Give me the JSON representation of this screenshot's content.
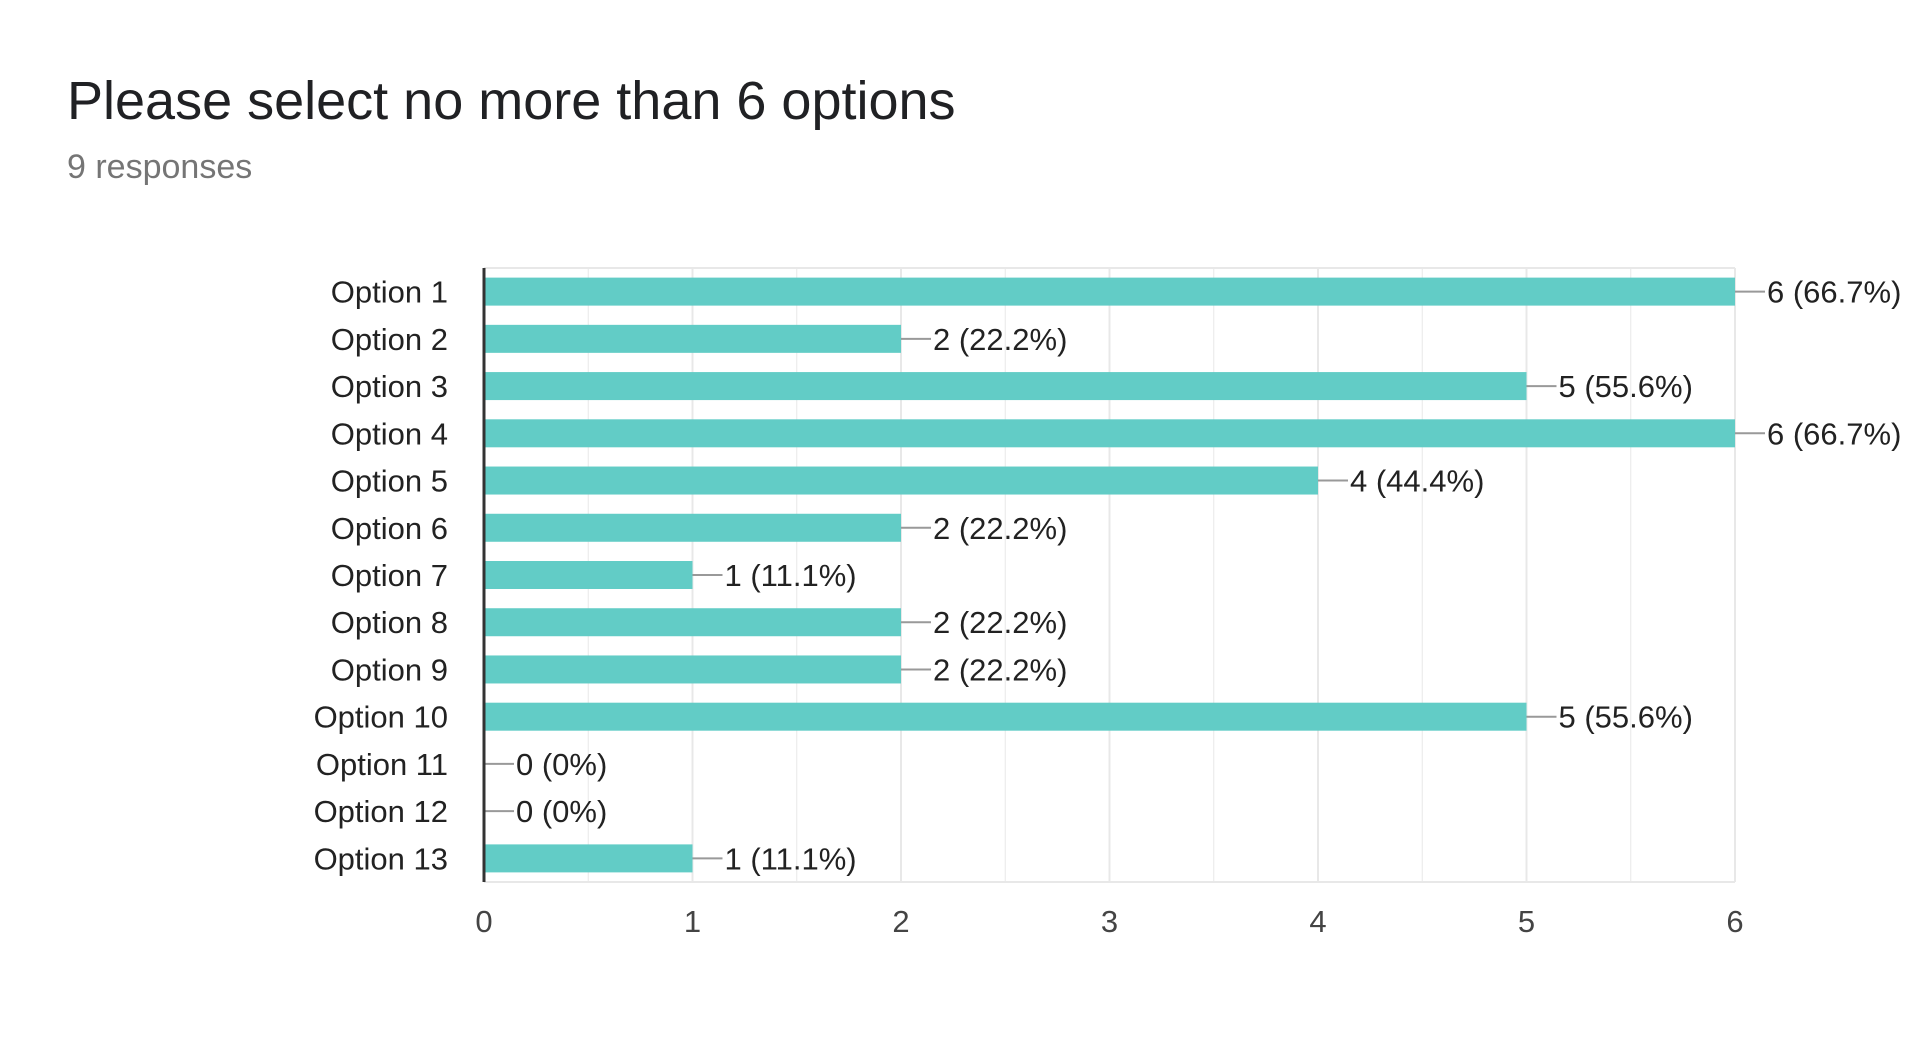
{
  "header": {
    "title": "Please select no more than 6 options",
    "subtitle": "9 responses"
  },
  "colors": {
    "bar": "#62ccc6",
    "grid": "#e8e8e8",
    "axis": "#333333",
    "text": "#222222",
    "leader": "#999999"
  },
  "chart_data": {
    "type": "bar",
    "orientation": "horizontal",
    "title": "Please select no more than 6 options",
    "subtitle": "9 responses",
    "categories": [
      "Option 1",
      "Option 2",
      "Option 3",
      "Option 4",
      "Option 5",
      "Option 6",
      "Option 7",
      "Option 8",
      "Option 9",
      "Option 10",
      "Option 11",
      "Option 12",
      "Option 13"
    ],
    "values": [
      6,
      2,
      5,
      6,
      4,
      2,
      1,
      2,
      2,
      5,
      0,
      0,
      1
    ],
    "data_labels": [
      "6 (66.7%)",
      "2 (22.2%)",
      "5 (55.6%)",
      "6 (66.7%)",
      "4 (44.4%)",
      "2 (22.2%)",
      "1 (11.1%)",
      "2 (22.2%)",
      "2 (22.2%)",
      "5 (55.6%)",
      "0 (0%)",
      "0 (0%)",
      "1 (11.1%)"
    ],
    "xlim": [
      0,
      6
    ],
    "xticks": [
      "0",
      "1",
      "2",
      "3",
      "4",
      "5",
      "6"
    ],
    "grid": true,
    "xlabel": "",
    "ylabel": ""
  }
}
